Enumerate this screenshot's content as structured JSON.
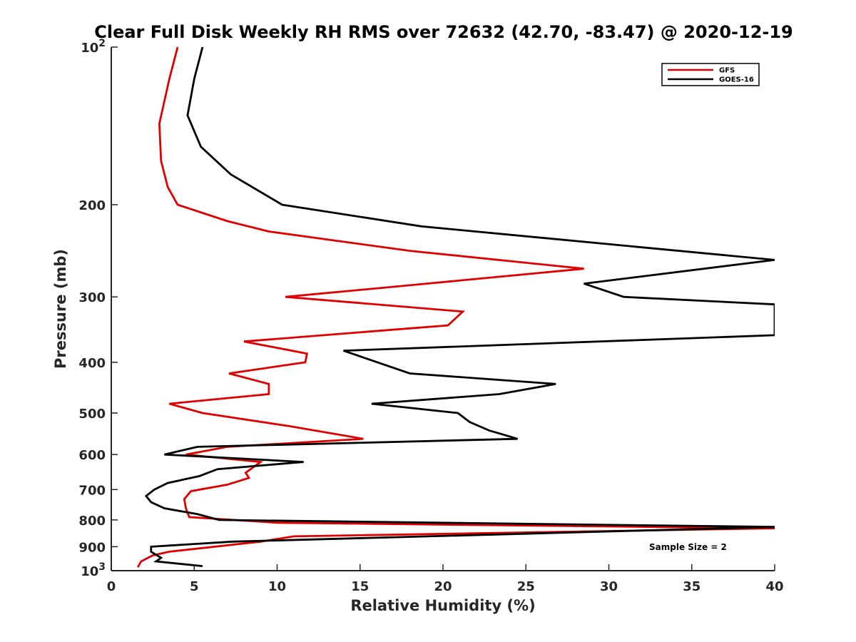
{
  "chart_data": {
    "type": "line",
    "title": "Clear Full Disk Weekly RH RMS over 72632 (42.70, -83.47) @ 2020-12-19",
    "xlabel": "Relative Humidity (%)",
    "ylabel": "Pressure (mb)",
    "xlim": [
      0,
      40
    ],
    "ylim": [
      100,
      1000
    ],
    "yscale": "log",
    "y_reversed": true,
    "grid": false,
    "x_ticks": [
      "0",
      "5",
      "10",
      "15",
      "20",
      "25",
      "30",
      "35",
      "40"
    ],
    "y_ticks": [
      {
        "value": 100,
        "base": "10",
        "exp": "2"
      },
      {
        "value": 200,
        "label": "200"
      },
      {
        "value": 300,
        "label": "300"
      },
      {
        "value": 400,
        "label": "400"
      },
      {
        "value": 500,
        "label": "500"
      },
      {
        "value": 600,
        "label": "600"
      },
      {
        "value": 700,
        "label": "700"
      },
      {
        "value": 800,
        "label": "800"
      },
      {
        "value": 900,
        "label": "900"
      },
      {
        "value": 1000,
        "base": "10",
        "exp": "3"
      }
    ],
    "legend_position": "top-right",
    "annotation": "Sample Size = 2",
    "series": [
      {
        "name": "GFS",
        "color": "#e00000",
        "points": [
          [
            4.0,
            100
          ],
          [
            3.5,
            115
          ],
          [
            2.9,
            140
          ],
          [
            3.0,
            165
          ],
          [
            3.4,
            185
          ],
          [
            4.0,
            200
          ],
          [
            7.0,
            215
          ],
          [
            9.5,
            225
          ],
          [
            18.0,
            245
          ],
          [
            28.5,
            265
          ],
          [
            18.0,
            285
          ],
          [
            10.5,
            300
          ],
          [
            21.2,
            320
          ],
          [
            20.3,
            340
          ],
          [
            8.0,
            365
          ],
          [
            11.8,
            385
          ],
          [
            11.7,
            400
          ],
          [
            7.1,
            420
          ],
          [
            9.5,
            440
          ],
          [
            9.5,
            460
          ],
          [
            3.5,
            480
          ],
          [
            5.5,
            500
          ],
          [
            10.8,
            530
          ],
          [
            15.2,
            560
          ],
          [
            7.0,
            580
          ],
          [
            4.5,
            600
          ],
          [
            9.0,
            620
          ],
          [
            8.1,
            650
          ],
          [
            8.3,
            665
          ],
          [
            7.0,
            685
          ],
          [
            4.8,
            705
          ],
          [
            4.4,
            730
          ],
          [
            4.5,
            760
          ],
          [
            4.7,
            790
          ],
          [
            10.0,
            810
          ],
          [
            40,
            830
          ],
          [
            11.0,
            860
          ],
          [
            9.0,
            880
          ],
          [
            3.5,
            920
          ],
          [
            2.5,
            935
          ],
          [
            1.8,
            960
          ],
          [
            1.6,
            985
          ]
        ]
      },
      {
        "name": "GOES-16",
        "color": "#000000",
        "points": [
          [
            5.5,
            100
          ],
          [
            5.0,
            115
          ],
          [
            4.6,
            135
          ],
          [
            5.4,
            155
          ],
          [
            7.2,
            175
          ],
          [
            10.3,
            200
          ],
          [
            18.7,
            220
          ],
          [
            40,
            255
          ],
          [
            28.5,
            283
          ],
          [
            30.9,
            300
          ],
          [
            40,
            310
          ],
          [
            40,
            355
          ],
          [
            14.0,
            380
          ],
          [
            18.0,
            420
          ],
          [
            26.8,
            440
          ],
          [
            23.4,
            460
          ],
          [
            15.7,
            480
          ],
          [
            20.9,
            500
          ],
          [
            21.6,
            520
          ],
          [
            22.8,
            540
          ],
          [
            24.5,
            560
          ],
          [
            5.2,
            580
          ],
          [
            3.2,
            600
          ],
          [
            11.6,
            620
          ],
          [
            6.4,
            640
          ],
          [
            5.3,
            660
          ],
          [
            3.4,
            680
          ],
          [
            2.6,
            700
          ],
          [
            2.1,
            720
          ],
          [
            2.4,
            740
          ],
          [
            3.2,
            760
          ],
          [
            5.2,
            780
          ],
          [
            6.5,
            800
          ],
          [
            40,
            825
          ],
          [
            7.3,
            880
          ],
          [
            2.4,
            900
          ],
          [
            2.4,
            920
          ],
          [
            3.0,
            945
          ],
          [
            2.7,
            960
          ],
          [
            5.5,
            980
          ]
        ]
      }
    ]
  }
}
